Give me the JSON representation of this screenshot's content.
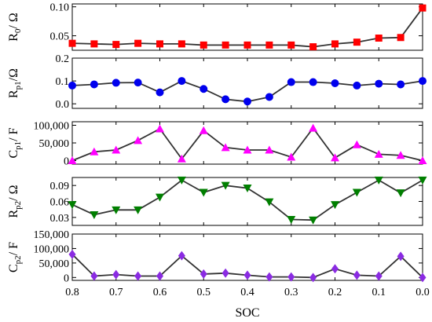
{
  "chart_data": {
    "type": "line",
    "shared_x": [
      0.8,
      0.75,
      0.7,
      0.65,
      0.6,
      0.55,
      0.5,
      0.45,
      0.4,
      0.35,
      0.3,
      0.25,
      0.2,
      0.15,
      0.1,
      0.05,
      0.0
    ],
    "xlim": [
      0.8,
      0.0
    ],
    "xticks": [
      "0.8",
      "0.7",
      "0.6",
      "0.5",
      "0.4",
      "0.3",
      "0.2",
      "0.1",
      "0.0"
    ],
    "xtick_values": [
      0.8,
      0.7,
      0.6,
      0.5,
      0.4,
      0.3,
      0.2,
      0.1,
      0.0
    ],
    "xlabel": "SOC",
    "line_color": "#333333",
    "panels": [
      {
        "ylabel_main": "R",
        "ylabel_sub": "0",
        "ylabel_rest": "/ Ω",
        "ylim": [
          0.025,
          0.105
        ],
        "yticks": [
          "0.05",
          "0.10"
        ],
        "ytick_values": [
          0.05,
          0.1
        ],
        "marker": "square",
        "color": "#ff0000",
        "values": [
          0.037,
          0.036,
          0.035,
          0.037,
          0.036,
          0.036,
          0.034,
          0.034,
          0.034,
          0.034,
          0.034,
          0.031,
          0.036,
          0.039,
          0.046,
          0.047,
          0.098
        ]
      },
      {
        "ylabel_main": "R",
        "ylabel_sub": "p1",
        "ylabel_rest": "/Ω",
        "ylim": [
          -0.02,
          0.2
        ],
        "yticks": [
          "0.0",
          "0.1",
          "0.2"
        ],
        "ytick_values": [
          0.0,
          0.1,
          0.2
        ],
        "marker": "circle",
        "color": "#0000ee",
        "values": [
          0.08,
          0.085,
          0.092,
          0.093,
          0.05,
          0.1,
          0.065,
          0.02,
          0.01,
          0.03,
          0.095,
          0.095,
          0.09,
          0.08,
          0.088,
          0.085,
          0.1
        ]
      },
      {
        "ylabel_main": "C",
        "ylabel_sub": "p1",
        "ylabel_rest": "/ F",
        "ylim": [
          -10000,
          110000
        ],
        "yticks": [
          "0",
          "50,000",
          "100,000"
        ],
        "ytick_values": [
          0,
          50000,
          100000
        ],
        "marker": "triangle-up",
        "color": "#ff00ff",
        "values": [
          0,
          25000,
          30000,
          57000,
          90000,
          5000,
          85000,
          37000,
          30000,
          30000,
          10000,
          92000,
          8000,
          45000,
          18000,
          15000,
          0
        ]
      },
      {
        "ylabel_main": "R",
        "ylabel_sub": "p2",
        "ylabel_rest": "/ Ω",
        "ylim": [
          0.015,
          0.105
        ],
        "yticks": [
          "0.03",
          "0.06",
          "0.09"
        ],
        "ytick_values": [
          0.03,
          0.06,
          0.09
        ],
        "marker": "triangle-down",
        "color": "#007f00",
        "values": [
          0.054,
          0.035,
          0.044,
          0.044,
          0.068,
          0.1,
          0.077,
          0.09,
          0.085,
          0.059,
          0.026,
          0.025,
          0.054,
          0.077,
          0.1,
          0.076,
          0.1
        ]
      },
      {
        "ylabel_main": "C",
        "ylabel_sub": "p2",
        "ylabel_rest": "/ F",
        "ylim": [
          -10000,
          150000
        ],
        "yticks": [
          "0",
          "50,000",
          "100,000",
          "150,000"
        ],
        "ytick_values": [
          0,
          50000,
          100000,
          150000
        ],
        "marker": "diamond",
        "color": "#8a2be2",
        "values": [
          80000,
          5000,
          10000,
          5000,
          5000,
          75000,
          12000,
          15000,
          8000,
          2000,
          2000,
          0,
          30000,
          8000,
          5000,
          73000,
          0
        ]
      }
    ]
  }
}
